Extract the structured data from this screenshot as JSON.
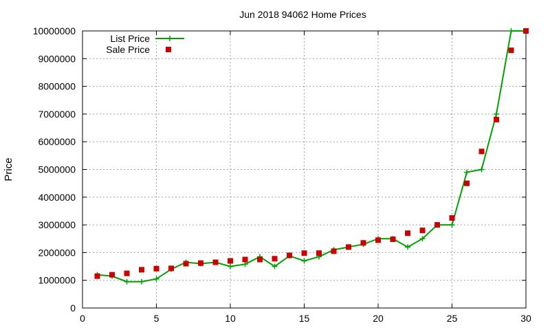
{
  "chart_data": {
    "type": "line",
    "title": "Jun 2018 94062 Home Prices",
    "xlabel": "",
    "ylabel": "Price",
    "xlim": [
      0,
      30
    ],
    "ylim": [
      0,
      10000000
    ],
    "x_ticks": [
      0,
      5,
      10,
      15,
      20,
      25,
      30
    ],
    "y_ticks": [
      0,
      1000000,
      2000000,
      3000000,
      4000000,
      5000000,
      6000000,
      7000000,
      8000000,
      9000000,
      10000000
    ],
    "x_tick_labels": [
      "0",
      "5",
      "10",
      "15",
      "20",
      "25",
      "30"
    ],
    "y_tick_labels": [
      "0",
      "1000000",
      "2000000",
      "3000000",
      "4000000",
      "5000000",
      "6000000",
      "7000000",
      "8000000",
      "9000000",
      "10000000"
    ],
    "grid": true,
    "legend_position": "top-left",
    "series": [
      {
        "name": "List Price",
        "style": "line-with-plus-markers",
        "color": "#00a000",
        "x": [
          1,
          2,
          3,
          4,
          5,
          6,
          7,
          8,
          9,
          10,
          11,
          12,
          13,
          14,
          15,
          16,
          17,
          18,
          19,
          20,
          21,
          22,
          23,
          24,
          25,
          26,
          27,
          28,
          29,
          30
        ],
        "y": [
          1200000,
          1150000,
          950000,
          950000,
          1050000,
          1400000,
          1650000,
          1600000,
          1650000,
          1500000,
          1580000,
          1850000,
          1500000,
          1880000,
          1700000,
          1850000,
          2100000,
          2200000,
          2300000,
          2500000,
          2500000,
          2200000,
          2500000,
          3000000,
          3000000,
          4900000,
          5000000,
          7000000,
          10000000,
          10000000
        ]
      },
      {
        "name": "Sale Price",
        "style": "square-markers",
        "color": "#cc0000",
        "x": [
          1,
          2,
          3,
          4,
          5,
          6,
          7,
          8,
          9,
          10,
          11,
          12,
          13,
          14,
          15,
          16,
          17,
          18,
          19,
          20,
          21,
          22,
          23,
          24,
          25,
          26,
          27,
          28,
          29,
          30
        ],
        "y": [
          1150000,
          1200000,
          1250000,
          1380000,
          1420000,
          1430000,
          1600000,
          1620000,
          1650000,
          1700000,
          1750000,
          1750000,
          1780000,
          1900000,
          1980000,
          1980000,
          2050000,
          2200000,
          2350000,
          2450000,
          2480000,
          2700000,
          2800000,
          3000000,
          3250000,
          4500000,
          5650000,
          6800000,
          9300000,
          10000000
        ]
      }
    ]
  }
}
